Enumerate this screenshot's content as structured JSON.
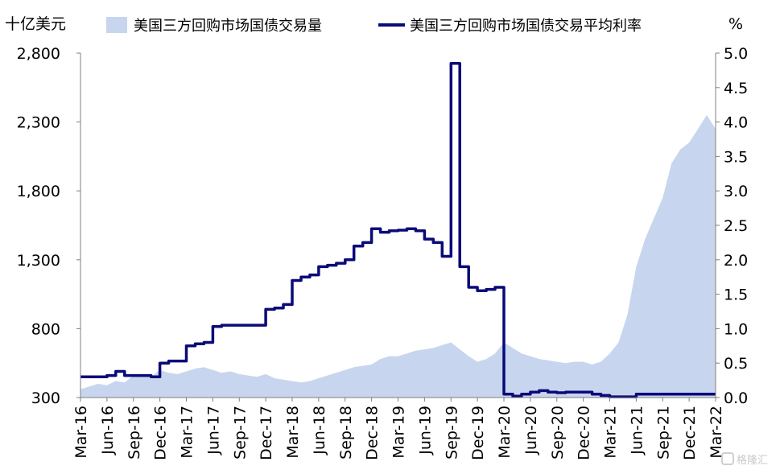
{
  "chart_data": {
    "type": "area+line",
    "left_axis_unit": "十亿美元",
    "right_axis_unit": "%",
    "ylim_left": [
      300,
      2800
    ],
    "yticks_left": [
      "300",
      "800",
      "1,300",
      "1,800",
      "2,300",
      "2,800"
    ],
    "ylim_right": [
      0.0,
      5.0
    ],
    "yticks_right": [
      "0.0",
      "0.5",
      "1.0",
      "1.5",
      "2.0",
      "2.5",
      "3.0",
      "3.5",
      "4.0",
      "4.5",
      "5.0"
    ],
    "x_tick_labels": [
      "Mar-16",
      "Jun-16",
      "Sep-16",
      "Dec-16",
      "Mar-17",
      "Jun-17",
      "Sep-17",
      "Dec-17",
      "Mar-18",
      "Jun-18",
      "Sep-18",
      "Dec-18",
      "Mar-19",
      "Jun-19",
      "Sep-19",
      "Dec-19",
      "Mar-20",
      "Jun-20",
      "Sep-20",
      "Dec-20",
      "Mar-21",
      "Jun-21",
      "Sep-21",
      "Dec-21",
      "Mar-22"
    ],
    "series": [
      {
        "name": "美国三方回购市场国债交易量",
        "type": "area",
        "axis": "left",
        "color": "#c7d6ee",
        "x": [
          "2016-03",
          "2016-04",
          "2016-05",
          "2016-06",
          "2016-07",
          "2016-08",
          "2016-09",
          "2016-10",
          "2016-11",
          "2016-12",
          "2017-01",
          "2017-02",
          "2017-03",
          "2017-04",
          "2017-05",
          "2017-06",
          "2017-07",
          "2017-08",
          "2017-09",
          "2017-10",
          "2017-11",
          "2017-12",
          "2018-01",
          "2018-02",
          "2018-03",
          "2018-04",
          "2018-05",
          "2018-06",
          "2018-07",
          "2018-08",
          "2018-09",
          "2018-10",
          "2018-11",
          "2018-12",
          "2019-01",
          "2019-02",
          "2019-03",
          "2019-04",
          "2019-05",
          "2019-06",
          "2019-07",
          "2019-08",
          "2019-09",
          "2019-10",
          "2019-11",
          "2019-12",
          "2020-01",
          "2020-02",
          "2020-03",
          "2020-04",
          "2020-05",
          "2020-06",
          "2020-07",
          "2020-08",
          "2020-09",
          "2020-10",
          "2020-11",
          "2020-12",
          "2021-01",
          "2021-02",
          "2021-03",
          "2021-04",
          "2021-05",
          "2021-06",
          "2021-07",
          "2021-08",
          "2021-09",
          "2021-10",
          "2021-11",
          "2021-12",
          "2022-01",
          "2022-02",
          "2022-03"
        ],
        "values": [
          360,
          380,
          400,
          390,
          420,
          410,
          460,
          470,
          450,
          500,
          480,
          470,
          490,
          510,
          520,
          500,
          480,
          490,
          470,
          460,
          450,
          470,
          440,
          430,
          420,
          410,
          420,
          440,
          460,
          480,
          500,
          520,
          530,
          540,
          580,
          600,
          600,
          620,
          640,
          650,
          660,
          680,
          700,
          650,
          600,
          560,
          580,
          620,
          700,
          660,
          620,
          600,
          580,
          570,
          560,
          550,
          560,
          560,
          540,
          560,
          620,
          700,
          900,
          1250,
          1450,
          1600,
          1750,
          2000,
          2100,
          2150,
          2250,
          2350,
          2250
        ]
      },
      {
        "name": "美国三方回购市场国债交易平均利率",
        "type": "line",
        "axis": "right",
        "color": "#0a0a78",
        "x": [
          "2016-03",
          "2016-06",
          "2016-07",
          "2016-08",
          "2016-09",
          "2016-10",
          "2016-11",
          "2016-12",
          "2017-01",
          "2017-02",
          "2017-03",
          "2017-04",
          "2017-05",
          "2017-06",
          "2017-07",
          "2017-08",
          "2017-09",
          "2017-10",
          "2017-11",
          "2017-12",
          "2018-01",
          "2018-02",
          "2018-03",
          "2018-04",
          "2018-05",
          "2018-06",
          "2018-07",
          "2018-08",
          "2018-09",
          "2018-10",
          "2018-11",
          "2018-12",
          "2019-01",
          "2019-02",
          "2019-03",
          "2019-04",
          "2019-05",
          "2019-06",
          "2019-07",
          "2019-08",
          "2019-09",
          "2019-10",
          "2019-11",
          "2019-12",
          "2020-01",
          "2020-02",
          "2020-03",
          "2020-04",
          "2020-05",
          "2020-06",
          "2020-07",
          "2020-08",
          "2020-09",
          "2020-10",
          "2020-11",
          "2020-12",
          "2021-01",
          "2021-02",
          "2021-03",
          "2021-04",
          "2021-05",
          "2021-06",
          "2021-07",
          "2021-08",
          "2021-09",
          "2021-10",
          "2021-11",
          "2021-12",
          "2022-01",
          "2022-02",
          "2022-03"
        ],
        "values": [
          0.3,
          0.32,
          0.38,
          0.32,
          0.32,
          0.32,
          0.3,
          0.5,
          0.53,
          0.53,
          0.75,
          0.78,
          0.8,
          1.03,
          1.05,
          1.05,
          1.05,
          1.05,
          1.05,
          1.28,
          1.3,
          1.35,
          1.7,
          1.75,
          1.78,
          1.9,
          1.92,
          1.95,
          2.0,
          2.2,
          2.25,
          2.45,
          2.4,
          2.42,
          2.43,
          2.45,
          2.42,
          2.3,
          2.25,
          2.05,
          4.85,
          1.9,
          1.6,
          1.55,
          1.57,
          1.6,
          0.05,
          0.02,
          0.05,
          0.08,
          0.1,
          0.08,
          0.07,
          0.08,
          0.08,
          0.08,
          0.05,
          0.03,
          0.01,
          0.01,
          0.01,
          0.05,
          0.05,
          0.05,
          0.05,
          0.05,
          0.05,
          0.05,
          0.05,
          0.05,
          0.05
        ]
      }
    ],
    "legend": "top"
  },
  "watermark": "格隆汇"
}
